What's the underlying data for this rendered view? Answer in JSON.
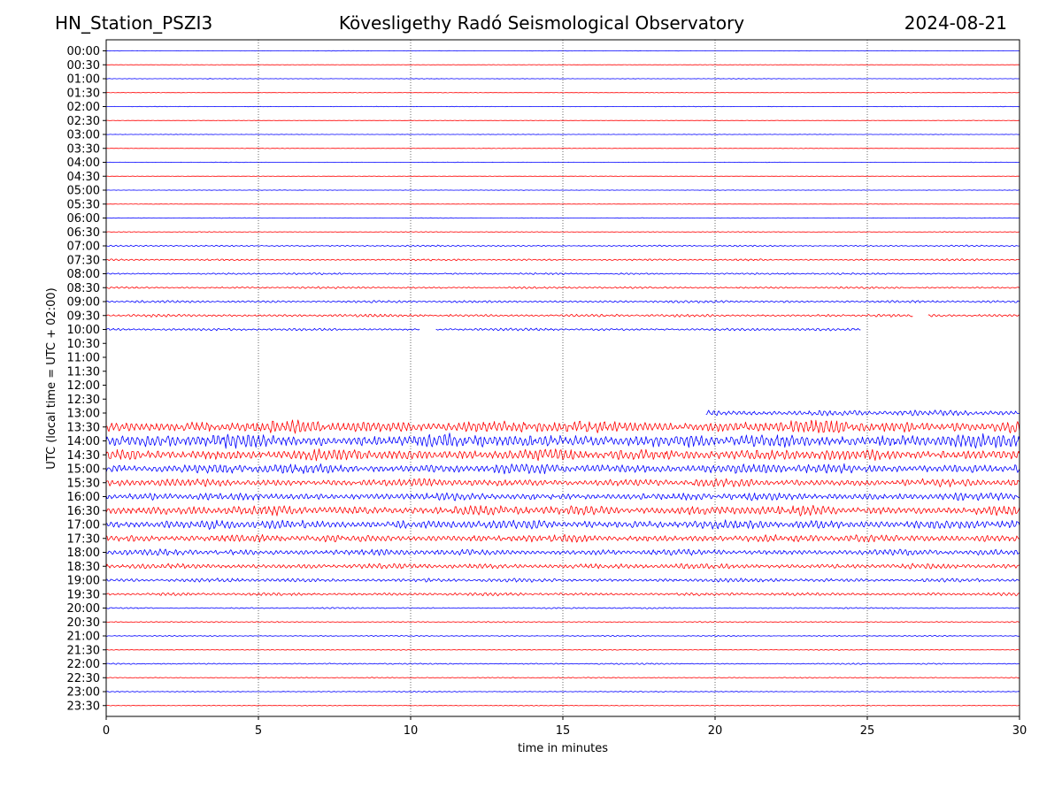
{
  "header": {
    "station": "HN_Station_PSZI3",
    "observatory": "Kövesligethy Radó Seismological Observatory",
    "date": "2024-08-21"
  },
  "chart_data": {
    "type": "line",
    "xlabel": "time in minutes",
    "ylabel": "UTC (local time = UTC + 02:00)",
    "xlim": [
      0,
      30
    ],
    "x_ticks": [
      "0",
      "5",
      "10",
      "15",
      "20",
      "25",
      "30"
    ],
    "x_tick_values": [
      0,
      5,
      10,
      15,
      20,
      25,
      30
    ],
    "grid": "vertical dotted lines at 5-minute intervals",
    "trace_colors": [
      "#0000ff",
      "#ff0000"
    ],
    "rows": [
      {
        "label": "00:00",
        "color": "#0000ff",
        "amp": 0.3
      },
      {
        "label": "00:30",
        "color": "#ff0000",
        "amp": 0.3
      },
      {
        "label": "01:00",
        "color": "#0000ff",
        "amp": 0.3
      },
      {
        "label": "01:30",
        "color": "#ff0000",
        "amp": 0.3
      },
      {
        "label": "02:00",
        "color": "#0000ff",
        "amp": 0.3
      },
      {
        "label": "02:30",
        "color": "#ff0000",
        "amp": 0.3
      },
      {
        "label": "03:00",
        "color": "#0000ff",
        "amp": 0.3
      },
      {
        "label": "03:30",
        "color": "#ff0000",
        "amp": 0.3
      },
      {
        "label": "04:00",
        "color": "#0000ff",
        "amp": 0.3
      },
      {
        "label": "04:30",
        "color": "#ff0000",
        "amp": 0.3
      },
      {
        "label": "05:00",
        "color": "#0000ff",
        "amp": 0.3
      },
      {
        "label": "05:30",
        "color": "#ff0000",
        "amp": 0.3
      },
      {
        "label": "06:00",
        "color": "#0000ff",
        "amp": 0.4
      },
      {
        "label": "06:30",
        "color": "#ff0000",
        "amp": 0.5
      },
      {
        "label": "07:00",
        "color": "#0000ff",
        "amp": 1.0
      },
      {
        "label": "07:30",
        "color": "#ff0000",
        "amp": 1.2
      },
      {
        "label": "08:00",
        "color": "#0000ff",
        "amp": 1.2
      },
      {
        "label": "08:30",
        "color": "#ff0000",
        "amp": 1.3
      },
      {
        "label": "09:00",
        "color": "#0000ff",
        "amp": 1.6
      },
      {
        "label": "09:30",
        "color": "#ff0000",
        "amp": 1.8,
        "gaps": [
          [
            26.5,
            27.0
          ]
        ]
      },
      {
        "label": "10:00",
        "color": "#0000ff",
        "amp": 1.7,
        "start": 0.0,
        "end": 24.8,
        "gaps": [
          [
            10.3,
            10.8
          ]
        ]
      },
      {
        "label": "10:30",
        "color": "#ff0000",
        "amp": 0,
        "empty": true
      },
      {
        "label": "11:00",
        "color": "#0000ff",
        "amp": 0,
        "empty": true
      },
      {
        "label": "11:30",
        "color": "#ff0000",
        "amp": 0,
        "empty": true
      },
      {
        "label": "12:00",
        "color": "#0000ff",
        "amp": 0,
        "empty": true
      },
      {
        "label": "12:30",
        "color": "#ff0000",
        "amp": 0,
        "empty": true
      },
      {
        "label": "13:00",
        "color": "#0000ff",
        "amp": 4.0,
        "start": 19.7,
        "end": 30
      },
      {
        "label": "13:30",
        "color": "#ff0000",
        "amp": 8.5
      },
      {
        "label": "14:00",
        "color": "#0000ff",
        "amp": 9.0
      },
      {
        "label": "14:30",
        "color": "#ff0000",
        "amp": 7.5
      },
      {
        "label": "15:00",
        "color": "#0000ff",
        "amp": 6.5
      },
      {
        "label": "15:30",
        "color": "#ff0000",
        "amp": 5.0
      },
      {
        "label": "16:00",
        "color": "#0000ff",
        "amp": 5.0
      },
      {
        "label": "16:30",
        "color": "#ff0000",
        "amp": 6.5
      },
      {
        "label": "17:00",
        "color": "#0000ff",
        "amp": 6.0
      },
      {
        "label": "17:30",
        "color": "#ff0000",
        "amp": 5.0
      },
      {
        "label": "18:00",
        "color": "#0000ff",
        "amp": 4.0
      },
      {
        "label": "18:30",
        "color": "#ff0000",
        "amp": 3.5
      },
      {
        "label": "19:00",
        "color": "#0000ff",
        "amp": 2.5
      },
      {
        "label": "19:30",
        "color": "#ff0000",
        "amp": 2.0
      },
      {
        "label": "20:00",
        "color": "#0000ff",
        "amp": 0.9
      },
      {
        "label": "20:30",
        "color": "#ff0000",
        "amp": 0.8
      },
      {
        "label": "21:00",
        "color": "#0000ff",
        "amp": 0.7
      },
      {
        "label": "21:30",
        "color": "#ff0000",
        "amp": 0.6
      },
      {
        "label": "22:00",
        "color": "#0000ff",
        "amp": 0.9
      },
      {
        "label": "22:30",
        "color": "#ff0000",
        "amp": 0.7
      },
      {
        "label": "23:00",
        "color": "#0000ff",
        "amp": 0.6
      },
      {
        "label": "23:30",
        "color": "#ff0000",
        "amp": 0.5
      }
    ]
  }
}
